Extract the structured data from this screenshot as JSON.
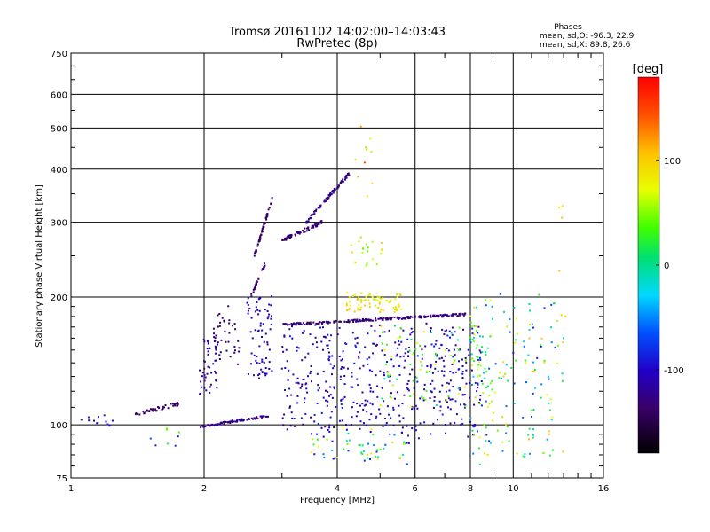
{
  "chart_data": {
    "type": "scatter",
    "title": "Tromsø 20161102 14:02:00–14:03:43",
    "subtitle": "RwPretec (8p)",
    "xlabel": "Frequency [MHz]",
    "ylabel": "Stationary phase Virtual Height [km]",
    "x_scale": "log",
    "y_scale": "log",
    "xlim": [
      1,
      16
    ],
    "ylim": [
      75,
      750
    ],
    "x_ticks": [
      1,
      2,
      4,
      6,
      8,
      10,
      16
    ],
    "y_ticks": [
      75,
      100,
      200,
      300,
      400,
      500,
      600,
      750
    ],
    "grid": true,
    "stats": {
      "heading": "Phases",
      "line_o": "mean, sd,O: -96.3, 22.9",
      "line_x": "mean, sd,X:  89.8, 26.6"
    },
    "colorbar": {
      "label": "[deg]",
      "min": -180,
      "max": 180,
      "ticks": [
        100,
        0,
        -100
      ],
      "tick_labels": [
        "100",
        "0",
        "-100"
      ]
    },
    "clusters": [
      {
        "x": [
          1.05,
          1.3
        ],
        "y": [
          100,
          106
        ],
        "n": 12,
        "phase": [
          -110,
          -80
        ],
        "spread": 0.015
      },
      {
        "x": [
          1.4,
          1.75
        ],
        "y": [
          106,
          112
        ],
        "n": 45,
        "phase": [
          -150,
          -130
        ],
        "spread": 0.01
      },
      {
        "x": [
          1.5,
          1.8
        ],
        "y": [
          88,
          100
        ],
        "n": 8,
        "phase": [
          -120,
          40
        ],
        "spread": 0.02
      },
      {
        "x": [
          1.95,
          2.8
        ],
        "y": [
          99,
          105
        ],
        "n": 90,
        "phase": [
          -140,
          -110
        ],
        "spread": 0.006
      },
      {
        "x": [
          1.95,
          2.15
        ],
        "y": [
          115,
          160
        ],
        "n": 45,
        "phase": [
          -140,
          -100
        ],
        "spread": 0.02
      },
      {
        "x": [
          2.1,
          2.4
        ],
        "y": [
          140,
          190
        ],
        "n": 40,
        "phase": [
          -150,
          -120
        ],
        "spread": 0.03
      },
      {
        "x": [
          2.5,
          2.85
        ],
        "y": [
          130,
          200
        ],
        "n": 70,
        "phase": [
          -120,
          -90
        ],
        "spread": 0.02
      },
      {
        "x": [
          2.55,
          2.75
        ],
        "y": [
          200,
          240
        ],
        "n": 25,
        "phase": [
          -150,
          -120
        ],
        "spread": 0.01
      },
      {
        "x": [
          2.6,
          2.85
        ],
        "y": [
          250,
          340
        ],
        "n": 55,
        "phase": [
          -150,
          -130
        ],
        "spread": 0.01
      },
      {
        "x": [
          3.0,
          3.7
        ],
        "y": [
          272,
          300
        ],
        "n": 65,
        "phase": [
          -150,
          -120
        ],
        "spread": 0.01
      },
      {
        "x": [
          3.4,
          4.3
        ],
        "y": [
          300,
          395
        ],
        "n": 80,
        "phase": [
          -140,
          -110
        ],
        "spread": 0.01
      },
      {
        "x": [
          3.0,
          7.8
        ],
        "y": [
          172,
          182
        ],
        "n": 220,
        "phase": [
          -150,
          -110
        ],
        "spread": 0.006
      },
      {
        "x": [
          4.2,
          5.6
        ],
        "y": [
          185,
          205
        ],
        "n": 70,
        "phase": [
          60,
          110
        ],
        "spread": 0.015
      },
      {
        "x": [
          4.3,
          5.2
        ],
        "y": [
          240,
          280
        ],
        "n": 20,
        "phase": [
          40,
          100
        ],
        "spread": 0.02
      },
      {
        "x": [
          3.0,
          8.5
        ],
        "y": [
          95,
          170
        ],
        "n": 460,
        "phase": [
          -130,
          -80
        ],
        "spread": 0.03
      },
      {
        "x": [
          5.0,
          9.0
        ],
        "y": [
          110,
          170
        ],
        "n": 110,
        "phase": [
          -20,
          90
        ],
        "spread": 0.03
      },
      {
        "x": [
          8.0,
          13.0
        ],
        "y": [
          80,
          200
        ],
        "n": 150,
        "phase": [
          -90,
          110
        ],
        "spread": 0.03
      },
      {
        "x": [
          3.5,
          6.0
        ],
        "y": [
          80,
          100
        ],
        "n": 60,
        "phase": [
          -110,
          100
        ],
        "spread": 0.03
      },
      {
        "x": [
          4.4,
          4.8
        ],
        "y": [
          330,
          510
        ],
        "n": 10,
        "phase": [
          50,
          150
        ],
        "spread": 0.02
      },
      {
        "x": [
          12.5,
          13.2
        ],
        "y": [
          170,
          350
        ],
        "n": 6,
        "phase": [
          80,
          120
        ],
        "spread": 0.02
      }
    ]
  }
}
